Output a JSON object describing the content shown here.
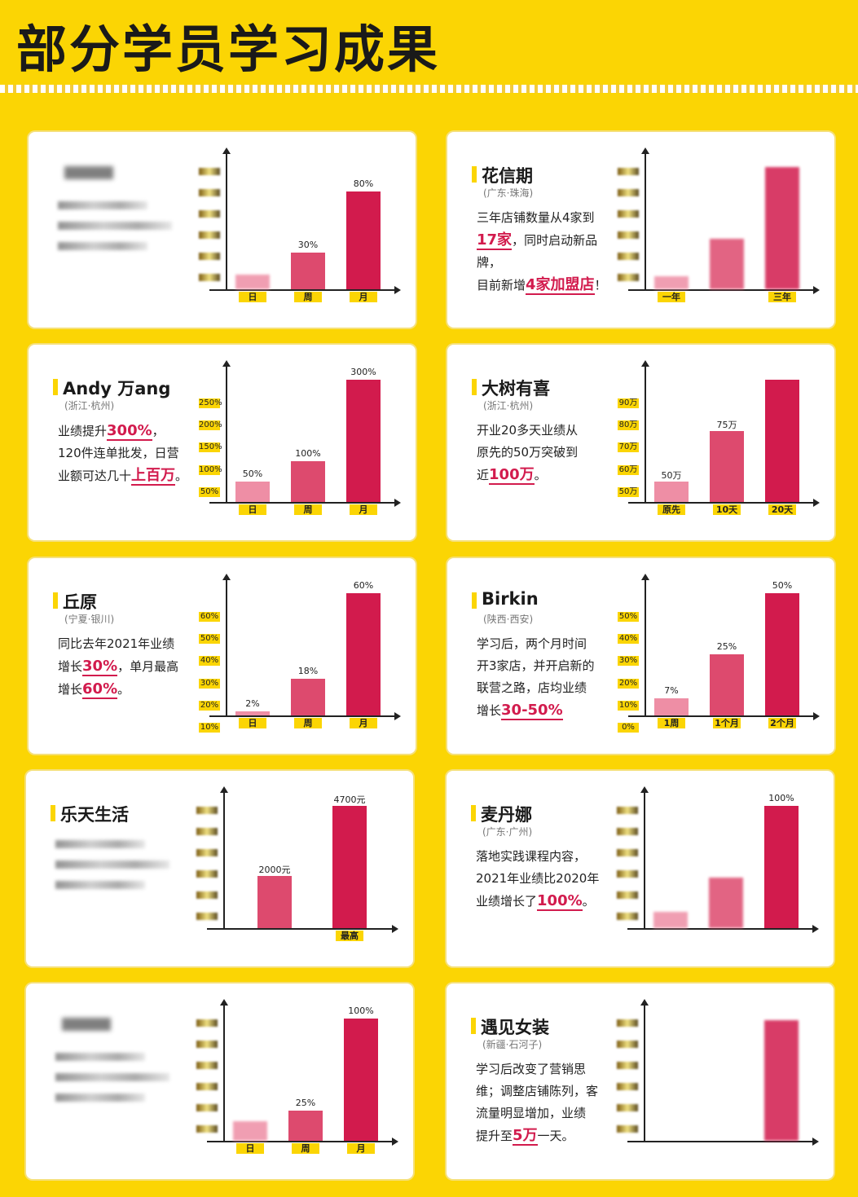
{
  "page_title": "部分学员学习成果",
  "colors": {
    "background": "#FBD504",
    "accent": "#d21b4d",
    "bar_light": "#ee8ea5",
    "bar_mid": "#dd4a6e",
    "bar_dark": "#d21b4d"
  },
  "cards": [
    {
      "name": "",
      "location": "",
      "desc": [],
      "chart_data": {
        "type": "bar",
        "categories": [
          "日",
          "周",
          "月"
        ],
        "values": [
          null,
          30,
          80
        ],
        "value_labels": [
          "",
          "30%",
          "80%"
        ],
        "ylim": [
          0,
          100
        ]
      }
    },
    {
      "name": "花信期",
      "location": "(广东·珠海)",
      "desc": [
        [
          "三年店铺数量从4家到"
        ],
        [
          {
            "hl": "17家"
          },
          "，同时启动新品牌，"
        ],
        [
          "目前新增",
          {
            "hl": "4家加盟店"
          },
          "！"
        ]
      ],
      "chart_data": {
        "type": "bar",
        "categories": [
          "一年",
          "",
          "三年"
        ],
        "values": [
          null,
          null,
          null
        ],
        "value_labels": [
          "",
          "",
          ""
        ],
        "ylim": [
          0,
          100
        ]
      }
    },
    {
      "name": "Andy 万ang",
      "location": "(浙江·杭州)",
      "desc": [
        [
          "业绩提升",
          {
            "hl": "300%"
          },
          "，"
        ],
        [
          "120件连单批发，日营"
        ],
        [
          "业额可达几十",
          {
            "hl": "上百万"
          },
          "。"
        ]
      ],
      "chart_data": {
        "type": "bar",
        "categories": [
          "日",
          "周",
          "月"
        ],
        "values": [
          50,
          100,
          300
        ],
        "value_labels": [
          "50%",
          "100%",
          "300%"
        ],
        "y_ticks": [
          "250%",
          "200%",
          "150%",
          "100%",
          "50%"
        ],
        "ylim": [
          0,
          300
        ]
      }
    },
    {
      "name": "大树有喜",
      "location": "(浙江·杭州)",
      "desc": [
        [
          "开业20多天业绩从"
        ],
        [
          "原先的50万突破到"
        ],
        [
          "近",
          {
            "hl": "100万"
          },
          "。"
        ]
      ],
      "chart_data": {
        "type": "bar",
        "categories": [
          "原先",
          "10天",
          "20天"
        ],
        "values": [
          50,
          75,
          100
        ],
        "value_labels": [
          "50万",
          "75万",
          ""
        ],
        "y_ticks": [
          "90万",
          "80万",
          "70万",
          "60万",
          "50万"
        ],
        "ylim": [
          40,
          100
        ]
      }
    },
    {
      "name": "丘原",
      "location": "(宁夏·银川)",
      "desc": [
        [
          "同比去年2021年业绩"
        ],
        [
          "增长",
          {
            "hl": "30%"
          },
          "，单月最高"
        ],
        [
          "增长",
          {
            "hl": "60%"
          },
          "。"
        ]
      ],
      "chart_data": {
        "type": "bar",
        "categories": [
          "日",
          "周",
          "月"
        ],
        "values": [
          2,
          18,
          60
        ],
        "value_labels": [
          "2%",
          "18%",
          "60%"
        ],
        "y_ticks": [
          "60%",
          "50%",
          "40%",
          "30%",
          "20%",
          "10%"
        ],
        "ylim": [
          0,
          60
        ]
      }
    },
    {
      "name": "Birkin",
      "location": "(陕西·西安)",
      "desc": [
        [
          "学习后，两个月时间"
        ],
        [
          "开3家店，并开启新的"
        ],
        [
          "联营之路，店均业绩"
        ],
        [
          "增长",
          {
            "hl": "30-50%"
          }
        ]
      ],
      "chart_data": {
        "type": "bar",
        "categories": [
          "1周",
          "1个月",
          "2个月"
        ],
        "values": [
          7,
          25,
          50
        ],
        "value_labels": [
          "7%",
          "25%",
          "50%"
        ],
        "y_ticks": [
          "50%",
          "40%",
          "30%",
          "20%",
          "10%",
          "0%"
        ],
        "ylim": [
          0,
          50
        ]
      }
    },
    {
      "name": "乐天生活",
      "location": "",
      "desc": [],
      "chart_data": {
        "type": "bar",
        "categories": [
          "",
          "最高"
        ],
        "values": [
          2000,
          4700
        ],
        "value_labels": [
          "2000元",
          "4700元"
        ],
        "ylim": [
          0,
          4700
        ]
      }
    },
    {
      "name": "麦丹娜",
      "location": "(广东·广州)",
      "desc": [
        [
          "落地实践课程内容，"
        ],
        [
          "2021年业绩比2020年"
        ],
        [
          "业绩增长了",
          {
            "hl": "100%"
          },
          "。"
        ]
      ],
      "chart_data": {
        "type": "bar",
        "categories": [
          "",
          "",
          ""
        ],
        "values": [
          null,
          null,
          100
        ],
        "value_labels": [
          "",
          "",
          "100%"
        ],
        "ylim": [
          0,
          100
        ]
      }
    },
    {
      "name": "",
      "location": "",
      "desc": [],
      "chart_data": {
        "type": "bar",
        "categories": [
          "日",
          "周",
          "月"
        ],
        "values": [
          null,
          25,
          100
        ],
        "value_labels": [
          "",
          "25%",
          "100%"
        ],
        "ylim": [
          0,
          100
        ]
      }
    },
    {
      "name": "遇见女装",
      "location": "(新疆·石河子)",
      "desc": [
        [
          "学习后改变了营销思"
        ],
        [
          "维；调整店铺陈列，客"
        ],
        [
          "流量明显增加，业绩"
        ],
        [
          "提升至",
          {
            "hl": "5万"
          },
          "一天。"
        ]
      ],
      "chart_data": {
        "type": "bar",
        "categories": [
          "",
          "",
          ""
        ],
        "values": [
          null,
          null,
          null
        ],
        "value_labels": [
          "",
          "",
          ""
        ],
        "ylim": [
          0,
          100
        ]
      }
    }
  ]
}
